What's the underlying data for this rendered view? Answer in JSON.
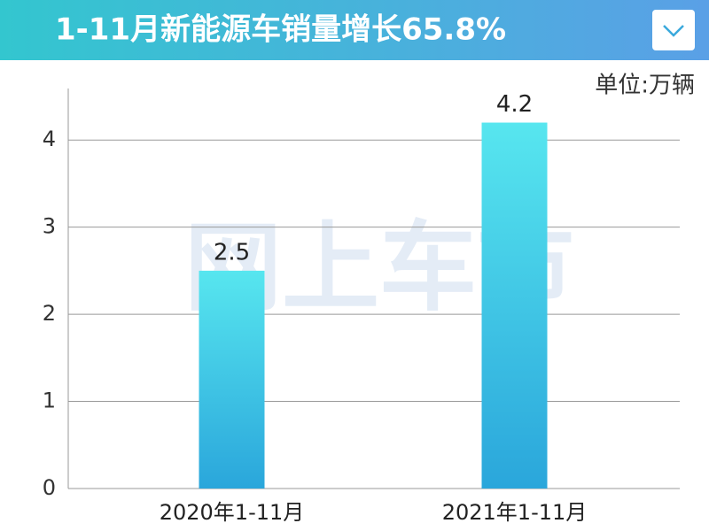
{
  "chart_data": {
    "type": "bar",
    "title": "1-11月新能源车销量增长65.8%",
    "unit": "单位:万辆",
    "watermark": "网上车市",
    "categories": [
      "2020年1-11月",
      "2021年1-11月"
    ],
    "values": [
      2.5,
      4.2
    ],
    "color": [
      "#57e6ef",
      "#2aa6db"
    ],
    "ylim": [
      0,
      4.5
    ],
    "yticks": [
      0,
      1,
      2,
      3,
      4
    ],
    "grid": true
  }
}
